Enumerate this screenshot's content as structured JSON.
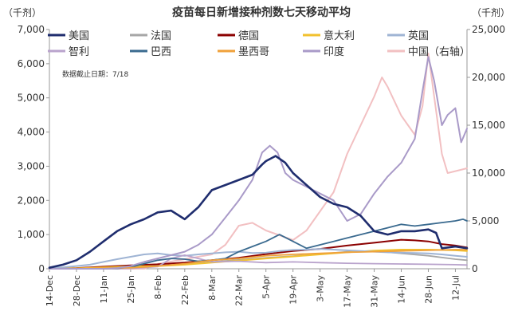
{
  "chart_data": {
    "type": "line",
    "title": "疫苗每日新增接种剂数七天移动平均",
    "y_unit_left": "（千剂）",
    "y_unit_right": "（千剂）",
    "note": "数据截止日期：7/18",
    "x_tick_labels": [
      "14-Dec",
      "28-Dec",
      "11-Jan",
      "25-Jan",
      "8-Feb",
      "22-Feb",
      "8-Mar",
      "22-Mar",
      "5-Apr",
      "19-Apr",
      "3-May",
      "17-May",
      "31-May",
      "14-Jun",
      "28-Jun",
      "12-Jul"
    ],
    "x_ticks": [
      0,
      14,
      28,
      42,
      56,
      70,
      84,
      98,
      112,
      126,
      140,
      154,
      168,
      182,
      196,
      210
    ],
    "x_range": [
      0,
      216
    ],
    "y_left": {
      "min": 0,
      "max": 7000,
      "ticks": [
        0,
        1000,
        2000,
        3000,
        4000,
        5000,
        6000,
        7000
      ],
      "tick_labels": [
        "0",
        "1,000",
        "2,000",
        "3,000",
        "4,000",
        "5,000",
        "6,000",
        "7,000"
      ]
    },
    "y_right": {
      "min": 0,
      "max": 25000,
      "ticks": [
        0,
        5000,
        10000,
        15000,
        20000,
        25000
      ],
      "tick_labels": [
        "0",
        "5,000",
        "10,000",
        "15,000",
        "20,000",
        "25,000"
      ]
    },
    "legend_placement": "top",
    "series": [
      {
        "name": "美国",
        "color": "#1f2d6e",
        "width": 2.6,
        "axis": "left",
        "x": [
          0,
          7,
          14,
          21,
          28,
          35,
          42,
          49,
          56,
          63,
          70,
          77,
          84,
          91,
          98,
          105,
          110,
          112,
          117,
          122,
          126,
          133,
          140,
          147,
          154,
          161,
          168,
          175,
          182,
          189,
          196,
          200,
          203,
          210,
          216
        ],
        "y": [
          30,
          120,
          250,
          500,
          800,
          1100,
          1300,
          1450,
          1650,
          1700,
          1450,
          1800,
          2300,
          2450,
          2600,
          2750,
          3050,
          3150,
          3300,
          3100,
          2800,
          2450,
          2100,
          1900,
          1800,
          1550,
          1100,
          1000,
          1100,
          1100,
          1150,
          1050,
          600,
          650,
          600
        ]
      },
      {
        "name": "法国",
        "color": "#a6a6a6",
        "width": 1.8,
        "axis": "left",
        "x": [
          0,
          14,
          28,
          42,
          56,
          70,
          84,
          98,
          112,
          126,
          140,
          154,
          168,
          182,
          196,
          210,
          216
        ],
        "y": [
          0,
          10,
          30,
          60,
          90,
          130,
          200,
          260,
          320,
          370,
          430,
          500,
          520,
          450,
          380,
          280,
          250
        ]
      },
      {
        "name": "德国",
        "color": "#8b0000",
        "width": 2.0,
        "axis": "left",
        "x": [
          0,
          14,
          28,
          42,
          56,
          70,
          84,
          98,
          112,
          126,
          140,
          154,
          168,
          182,
          189,
          196,
          203,
          210,
          216
        ],
        "y": [
          0,
          20,
          60,
          100,
          130,
          180,
          250,
          320,
          430,
          520,
          580,
          680,
          760,
          850,
          830,
          800,
          720,
          680,
          620
        ]
      },
      {
        "name": "意大利",
        "color": "#f2c12e",
        "width": 2.0,
        "axis": "left",
        "x": [
          0,
          14,
          28,
          42,
          56,
          70,
          84,
          98,
          112,
          126,
          140,
          154,
          168,
          182,
          196,
          210,
          216
        ],
        "y": [
          0,
          15,
          40,
          70,
          80,
          120,
          180,
          240,
          300,
          360,
          420,
          480,
          530,
          560,
          560,
          540,
          520
        ]
      },
      {
        "name": "英国",
        "color": "#9fb4d4",
        "width": 2.0,
        "axis": "left",
        "x": [
          0,
          7,
          14,
          21,
          28,
          35,
          42,
          49,
          56,
          63,
          70,
          77,
          84,
          91,
          98,
          105,
          112,
          119,
          126,
          133,
          140,
          147,
          154,
          161,
          168,
          175,
          182,
          189,
          196,
          203,
          210,
          216
        ],
        "y": [
          10,
          40,
          80,
          120,
          200,
          280,
          350,
          420,
          450,
          400,
          380,
          420,
          450,
          480,
          500,
          460,
          470,
          520,
          550,
          560,
          580,
          560,
          540,
          520,
          500,
          480,
          470,
          460,
          450,
          420,
          380,
          350
        ]
      },
      {
        "name": "智利",
        "color": "#b9a3cc",
        "width": 1.8,
        "axis": "left",
        "x": [
          0,
          14,
          28,
          42,
          56,
          63,
          70,
          84,
          98,
          112,
          126,
          140,
          154,
          168,
          182,
          196,
          210,
          216
        ],
        "y": [
          0,
          0,
          0,
          10,
          60,
          300,
          400,
          200,
          220,
          180,
          200,
          180,
          160,
          150,
          140,
          130,
          120,
          110
        ]
      },
      {
        "name": "巴西",
        "color": "#3a6a8f",
        "width": 1.8,
        "axis": "left",
        "x": [
          0,
          21,
          35,
          42,
          49,
          56,
          63,
          70,
          77,
          84,
          91,
          98,
          105,
          112,
          119,
          126,
          133,
          140,
          147,
          154,
          161,
          168,
          175,
          182,
          189,
          196,
          203,
          210,
          214,
          216
        ],
        "y": [
          0,
          0,
          10,
          50,
          150,
          250,
          300,
          280,
          220,
          250,
          300,
          500,
          650,
          800,
          1000,
          800,
          600,
          700,
          800,
          900,
          1000,
          1100,
          1200,
          1300,
          1250,
          1300,
          1350,
          1400,
          1450,
          1400
        ]
      },
      {
        "name": "墨西哥",
        "color": "#f0a13a",
        "width": 1.8,
        "axis": "left",
        "x": [
          0,
          14,
          28,
          42,
          49,
          56,
          70,
          84,
          98,
          112,
          126,
          140,
          154,
          168,
          182,
          196,
          210,
          216
        ],
        "y": [
          0,
          10,
          20,
          30,
          50,
          80,
          150,
          250,
          300,
          380,
          420,
          450,
          480,
          500,
          520,
          540,
          560,
          560
        ]
      },
      {
        "name": "印度",
        "color": "#a99ac8",
        "width": 2.0,
        "axis": "left",
        "x": [
          0,
          28,
          35,
          42,
          49,
          56,
          63,
          70,
          77,
          84,
          91,
          98,
          105,
          110,
          114,
          118,
          122,
          126,
          133,
          140,
          147,
          154,
          161,
          168,
          175,
          182,
          189,
          193,
          196,
          199,
          203,
          206,
          210,
          213,
          216
        ],
        "y": [
          0,
          0,
          20,
          80,
          200,
          300,
          400,
          500,
          700,
          1000,
          1500,
          2000,
          2600,
          3400,
          3600,
          3400,
          2800,
          2600,
          2400,
          2200,
          2000,
          1400,
          1600,
          2200,
          2700,
          3100,
          3800,
          5200,
          6200,
          5500,
          4200,
          4500,
          4700,
          3700,
          4100
        ]
      },
      {
        "name": "中国（右轴）",
        "color": "#f2c0c2",
        "width": 2.0,
        "axis": "right",
        "x": [
          0,
          49,
          56,
          70,
          84,
          91,
          98,
          105,
          112,
          119,
          126,
          133,
          140,
          147,
          154,
          161,
          168,
          172,
          175,
          182,
          189,
          193,
          196,
          199,
          203,
          206,
          210,
          216
        ],
        "y": [
          0,
          0,
          500,
          1000,
          1500,
          2500,
          4500,
          4800,
          4000,
          3500,
          3000,
          4000,
          6000,
          8000,
          12000,
          15000,
          18000,
          20000,
          19000,
          16000,
          14000,
          17000,
          22500,
          18000,
          12000,
          10000,
          10200,
          10500
        ]
      }
    ]
  }
}
